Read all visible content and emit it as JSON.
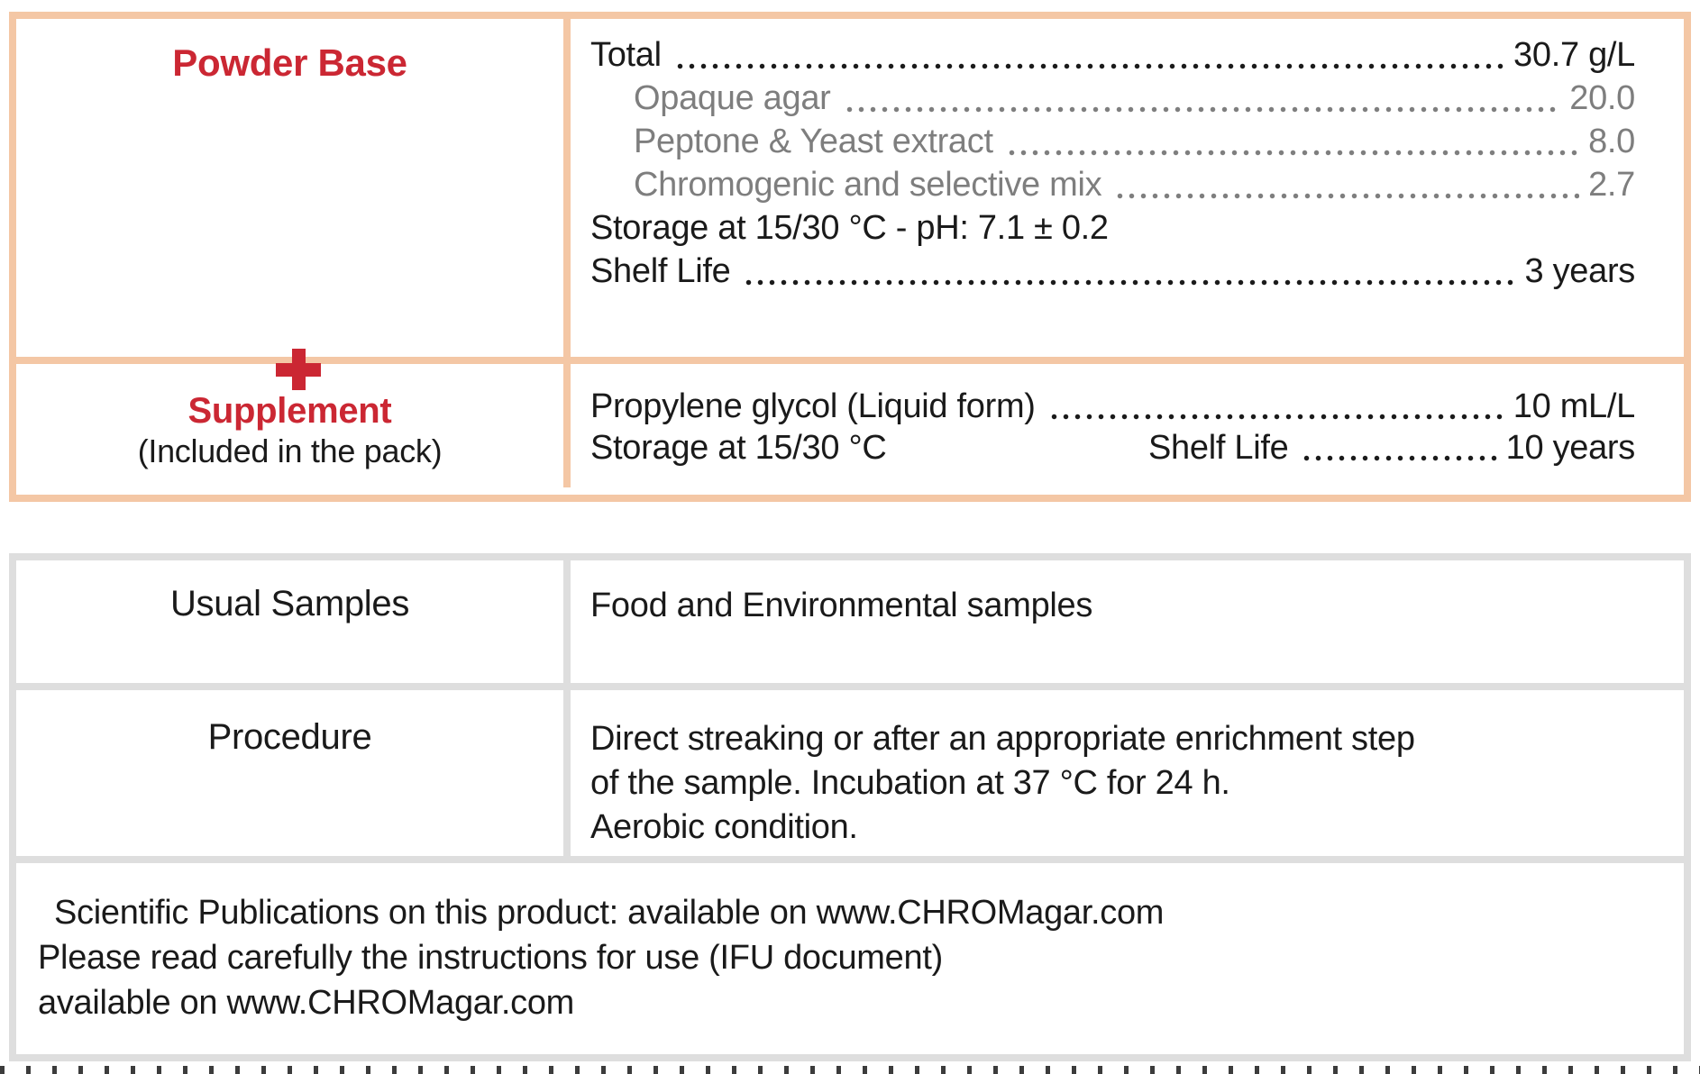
{
  "colors": {
    "accent_border": "#f4c7a5",
    "info_border": "#dedede",
    "red": "#cb2733",
    "text": "#1a1a1a",
    "muted_text": "#7e7e7e"
  },
  "top_table": {
    "left": {
      "powder_base": "Powder Base",
      "plus": "+",
      "supplement": "Supplement",
      "supplement_note": "(Included in the pack)"
    },
    "powder": {
      "total": {
        "label": "Total",
        "value": "30.7 g/L"
      },
      "components": [
        {
          "label": "Opaque agar",
          "value": "20.0"
        },
        {
          "label": "Peptone & Yeast extract",
          "value": "8.0"
        },
        {
          "label": "Chromogenic and selective mix",
          "value": "2.7"
        }
      ],
      "storage_ph": "Storage at 15/30 °C - pH: 7.1 ± 0.2",
      "shelf_life": {
        "label": "Shelf Life",
        "value": "3 years"
      }
    },
    "supplement": {
      "glycol": {
        "label": "Propylene glycol (Liquid form)",
        "value": "10 mL/L"
      },
      "storage": "Storage at 15/30 °C",
      "shelf_life": {
        "label": "Shelf Life",
        "value": "10 years"
      }
    }
  },
  "info_table": {
    "rows": [
      {
        "header": "Usual Samples",
        "lines": [
          "Food and Environmental samples"
        ]
      },
      {
        "header": "Procedure",
        "lines": [
          "Direct streaking or after an appropriate enrichment step",
          "of the sample. Incubation at 37 °C for 24 h.",
          "Aerobic condition."
        ]
      }
    ],
    "footer_lines": [
      "Scientific Publications on this product: available on www.CHROMagar.com",
      "Please read carefully the instructions for use (IFU document)",
      "available on www.CHROMagar.com"
    ]
  }
}
